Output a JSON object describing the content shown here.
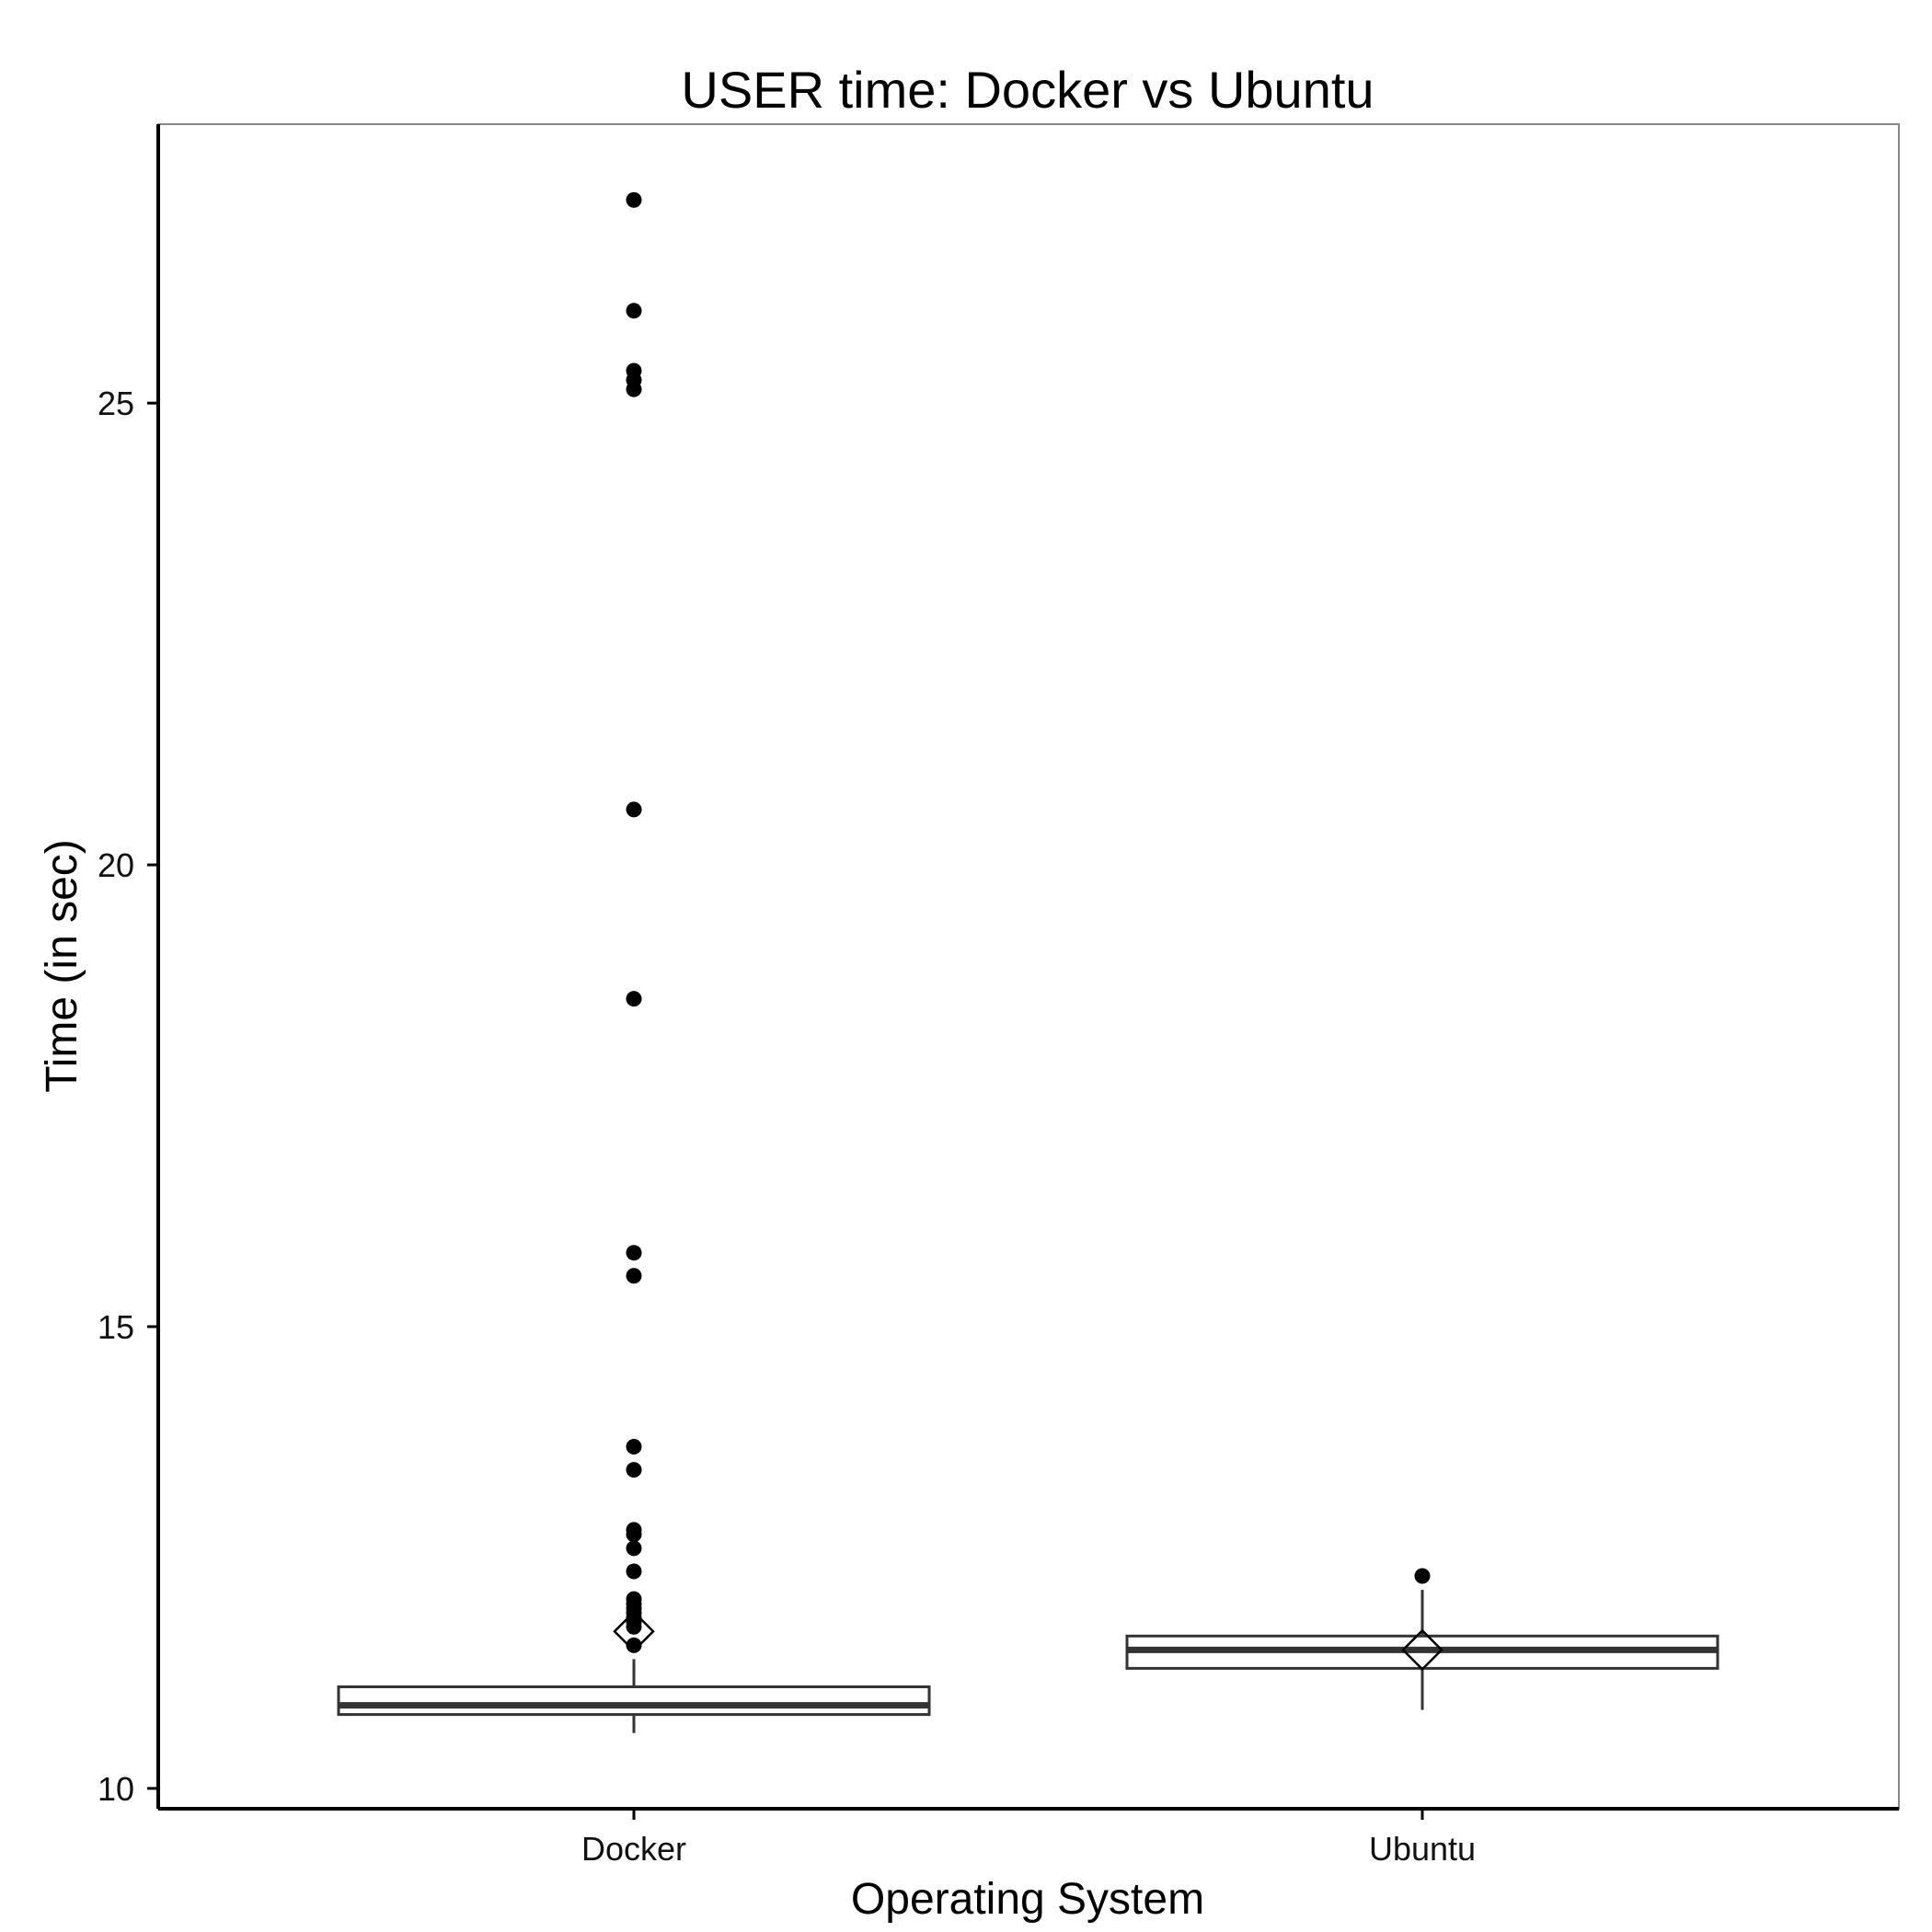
{
  "chart_data": {
    "type": "box",
    "title": "USER time: Docker vs Ubuntu",
    "xlabel": "Operating System",
    "ylabel": "Time (in sec)",
    "categories": [
      "Docker",
      "Ubuntu"
    ],
    "ylim": [
      9.78,
      28.02
    ],
    "yticks": [
      10,
      15,
      20,
      25
    ],
    "grid": false,
    "boxes": [
      {
        "category": "Docker",
        "whisker_low": 10.6,
        "q1": 10.8,
        "median": 10.9,
        "q3": 11.1,
        "whisker_high": 11.4,
        "mean": 11.7,
        "outliers": [
          27.2,
          26.0,
          25.35,
          25.25,
          25.15,
          20.6,
          18.55,
          15.8,
          15.55,
          13.7,
          13.45,
          12.8,
          12.75,
          12.6,
          12.35,
          12.05,
          12.0,
          11.95,
          11.9,
          11.85,
          11.8,
          11.75,
          11.55
        ]
      },
      {
        "category": "Ubuntu",
        "whisker_low": 10.85,
        "q1": 11.3,
        "median": 11.5,
        "q3": 11.65,
        "whisker_high": 12.15,
        "mean": 11.5,
        "outliers": [
          12.3
        ]
      }
    ],
    "colors": {
      "box_stroke": "#333333",
      "box_fill": "#ffffff",
      "point": "#000000",
      "frame": "#888888",
      "axis": "#000000"
    }
  }
}
